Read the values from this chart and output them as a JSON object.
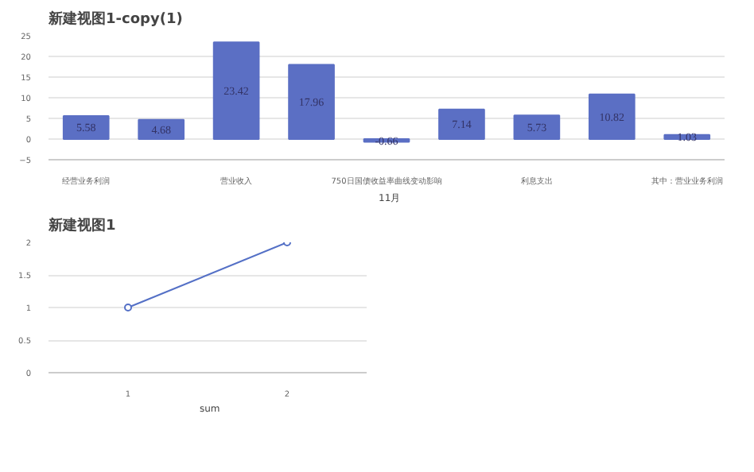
{
  "chart_data": [
    {
      "type": "bar",
      "title": "新建视图1-copy(1)",
      "categories": [
        "经营业务利润",
        null,
        "营业收入",
        null,
        "750日国债收益率曲线变动影响",
        null,
        "利息支出",
        null,
        "其中：营业业务利润"
      ],
      "series": [
        {
          "name": "11月",
          "color": "#5b6fc4",
          "values": [
            5.58,
            4.68,
            23.42,
            17.96,
            -0.66,
            7.14,
            5.73,
            10.82,
            1.03
          ]
        }
      ],
      "ylim": [
        -5,
        25
      ],
      "yticks": [
        -5,
        0,
        5,
        10,
        15,
        20,
        25
      ],
      "grid": "y",
      "data_labels": true,
      "legend": "bottom"
    },
    {
      "type": "line",
      "title": "新建视图1",
      "categories": [
        "1",
        "2"
      ],
      "series": [
        {
          "name": "sum",
          "color": "#5470c6",
          "values": [
            1,
            2
          ]
        }
      ],
      "ylim": [
        0,
        2
      ],
      "yticks": [
        0,
        0.5,
        1,
        1.5,
        2
      ],
      "grid": "y",
      "marker": "circle",
      "legend": "bottom"
    }
  ]
}
